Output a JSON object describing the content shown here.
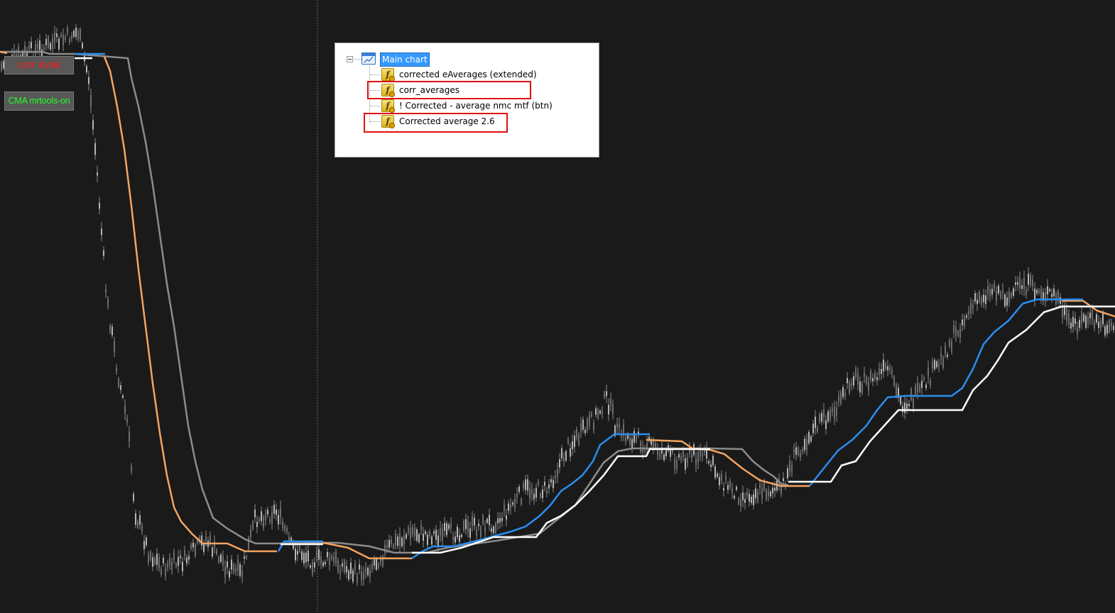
{
  "chart_buttons": {
    "corr_kvak": {
      "label": "corr kvak",
      "color": "#ff1a1a"
    },
    "cma_mrtools": {
      "label": "CMA mrtools-on",
      "color": "#22ff22"
    }
  },
  "indicator_tree": {
    "root_label": "Main chart",
    "items": [
      {
        "label": "corrected eAverages (extended)",
        "highlighted": false
      },
      {
        "label": "corr_averages",
        "highlighted": true
      },
      {
        "label": "! Corrected - average nmc mtf (btn)",
        "highlighted": false
      },
      {
        "label": "Corrected average 2.6",
        "highlighted": true
      }
    ],
    "highlight_color": "#e01010"
  },
  "colors": {
    "background": "#1a1a1a",
    "candles": "#9a9a9a",
    "orange_line": "#f4a460",
    "gray_line": "#8c8c8c",
    "blue_line": "#2a8ef0",
    "white_line": "#ffffff",
    "period_separator": "#6a6a6a"
  }
}
